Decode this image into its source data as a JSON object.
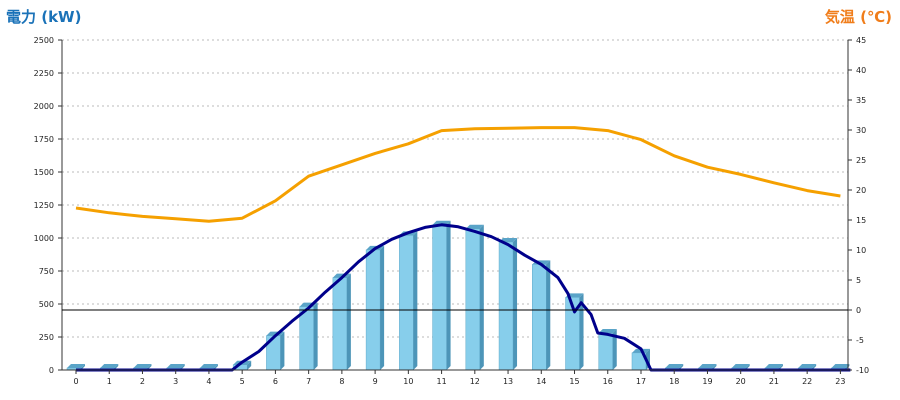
{
  "chart_data": {
    "type": "bar",
    "categories": [
      "0",
      "1",
      "2",
      "3",
      "4",
      "5",
      "6",
      "7",
      "8",
      "9",
      "10",
      "11",
      "12",
      "13",
      "14",
      "15",
      "16",
      "17",
      "18",
      "19",
      "20",
      "21",
      "22",
      "23"
    ],
    "left_axis": {
      "label": "電力 (kW)",
      "color": "#1a72b8",
      "ylim": [
        0,
        2500
      ],
      "ticks": [
        0,
        250,
        500,
        750,
        1000,
        1250,
        1500,
        1750,
        2000,
        2250,
        2500
      ]
    },
    "right_axis": {
      "label": "気温 (℃)",
      "color": "#f07d1a",
      "ylim": [
        -10,
        45
      ],
      "ticks": [
        -10,
        -5,
        0,
        5,
        10,
        15,
        20,
        25,
        30,
        35,
        40,
        45
      ]
    },
    "bar_series": {
      "axis": "left",
      "color": "#87ceeb",
      "values": [
        0,
        0,
        0,
        0,
        0,
        40,
        260,
        480,
        700,
        910,
        1020,
        1100,
        1070,
        970,
        800,
        550,
        280,
        130,
        0,
        0,
        0,
        0,
        0,
        0
      ]
    },
    "line_series": [
      {
        "axis": "left",
        "color": "#00008b",
        "points": [
          [
            0,
            0
          ],
          [
            4.7,
            0
          ],
          [
            5,
            60
          ],
          [
            5.5,
            140
          ],
          [
            6,
            260
          ],
          [
            6.5,
            370
          ],
          [
            7,
            470
          ],
          [
            7.5,
            590
          ],
          [
            8,
            700
          ],
          [
            8.5,
            820
          ],
          [
            9,
            920
          ],
          [
            9.5,
            990
          ],
          [
            10,
            1040
          ],
          [
            10.5,
            1080
          ],
          [
            11,
            1100
          ],
          [
            11.5,
            1085
          ],
          [
            12,
            1050
          ],
          [
            12.5,
            1010
          ],
          [
            13,
            950
          ],
          [
            13.5,
            870
          ],
          [
            14,
            800
          ],
          [
            14.5,
            700
          ],
          [
            14.8,
            580
          ],
          [
            15,
            440
          ],
          [
            15.2,
            510
          ],
          [
            15.5,
            420
          ],
          [
            15.7,
            280
          ],
          [
            16,
            270
          ],
          [
            16.5,
            240
          ],
          [
            17,
            160
          ],
          [
            17.3,
            0
          ],
          [
            23.3,
            0
          ]
        ]
      },
      {
        "axis": "right",
        "color": "#f5a000",
        "x": [
          0,
          1,
          2,
          3,
          4,
          5,
          6,
          7,
          8,
          9,
          10,
          11,
          12,
          13,
          14,
          15,
          16,
          17,
          18,
          19,
          20,
          21,
          22,
          23
        ],
        "values": [
          17,
          16.2,
          15.6,
          15.2,
          14.8,
          15.3,
          18.2,
          22.3,
          24.2,
          26.1,
          27.7,
          29.9,
          30.2,
          30.3,
          30.4,
          30.4,
          29.9,
          28.4,
          25.7,
          23.8,
          22.6,
          21.2,
          19.9,
          19
        ]
      }
    ],
    "grid": true,
    "zero_line_axis": "right"
  }
}
